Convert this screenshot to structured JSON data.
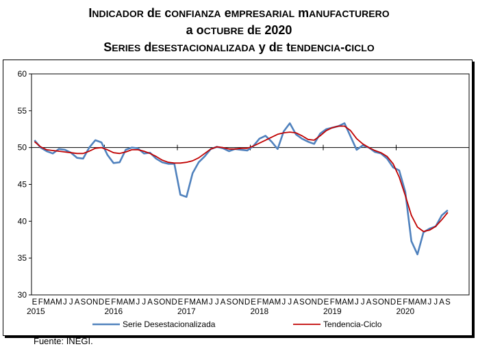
{
  "title_line1": "Indicador de confianza empresarial manufacturero",
  "title_line2": "a octubre de 2020",
  "title_line3": "Series desestacionalizada y de tendencia-ciclo",
  "source": "Fuente: INEGI.",
  "chart_data": {
    "type": "line",
    "ylim": [
      30,
      60
    ],
    "yticks": [
      30,
      35,
      40,
      45,
      50,
      55,
      60
    ],
    "reference_line": 50,
    "month_letters": [
      "E",
      "F",
      "M",
      "A",
      "M",
      "J",
      "J",
      "A",
      "S",
      "O",
      "N",
      "D"
    ],
    "years": [
      "2015",
      "2016",
      "2017",
      "2018",
      "2019",
      "2020"
    ],
    "legend_position": "bottom",
    "series": [
      {
        "name": "Serie Desestacionalizada",
        "color": "#4f81bd",
        "values": [
          51.0,
          50.0,
          49.5,
          49.2,
          49.8,
          49.7,
          49.3,
          48.6,
          48.5,
          50.0,
          51.0,
          50.7,
          49.0,
          47.9,
          48.0,
          49.7,
          50.0,
          49.9,
          49.2,
          49.3,
          48.5,
          48.0,
          47.8,
          47.8,
          43.6,
          43.3,
          46.5,
          48.0,
          48.8,
          49.8,
          50.1,
          49.9,
          49.5,
          49.8,
          49.7,
          49.6,
          50.2,
          51.2,
          51.6,
          50.8,
          49.8,
          52.2,
          53.3,
          51.8,
          51.2,
          50.8,
          50.5,
          51.9,
          52.5,
          52.7,
          52.9,
          53.3,
          51.5,
          49.7,
          50.3,
          50.0,
          49.4,
          49.2,
          48.5,
          47.3,
          46.9,
          44.0,
          37.3,
          35.5,
          38.5,
          39.0,
          39.3,
          40.8,
          41.5
        ]
      },
      {
        "name": "Tendencia-Ciclo",
        "color": "#c00000",
        "values": [
          50.8,
          50.1,
          49.7,
          49.6,
          49.5,
          49.4,
          49.3,
          49.2,
          49.2,
          49.5,
          49.9,
          50.0,
          49.7,
          49.3,
          49.2,
          49.4,
          49.7,
          49.7,
          49.5,
          49.2,
          48.8,
          48.3,
          48.0,
          47.9,
          47.9,
          48.0,
          48.2,
          48.6,
          49.2,
          49.8,
          50.1,
          50.0,
          49.8,
          49.8,
          49.9,
          49.9,
          50.2,
          50.6,
          51.0,
          51.4,
          51.8,
          52.0,
          52.1,
          52.0,
          51.6,
          51.1,
          51.0,
          51.6,
          52.3,
          52.7,
          52.9,
          52.9,
          52.3,
          51.2,
          50.5,
          50.0,
          49.6,
          49.3,
          48.8,
          47.8,
          46.0,
          43.5,
          40.8,
          39.2,
          38.6,
          38.8,
          39.3,
          40.2,
          41.2
        ]
      }
    ]
  }
}
